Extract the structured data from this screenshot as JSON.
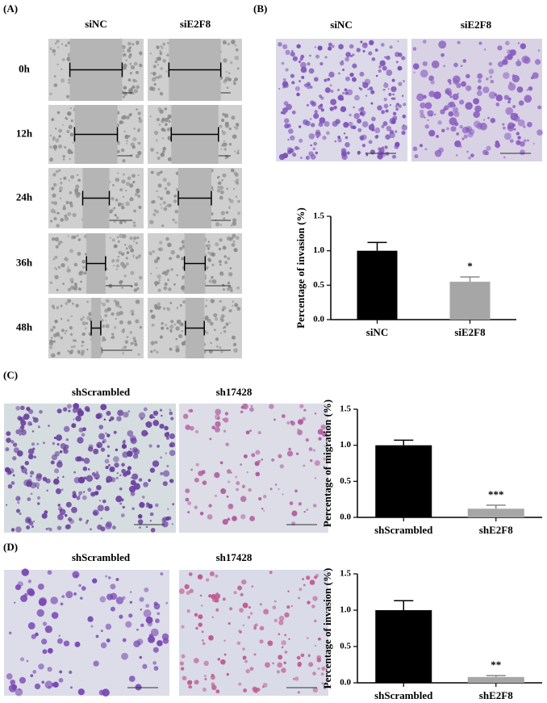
{
  "panels": [
    {
      "label": "(A)",
      "columns": [
        "siNC",
        "siE2F8"
      ],
      "rows": [
        "0h",
        "12h",
        "24h",
        "36h",
        "48h"
      ]
    },
    {
      "label": "(B)",
      "columns": [
        "siNC",
        "siE2F8"
      ]
    },
    {
      "label": "(C)",
      "columns": [
        "shScrambled",
        "sh17428"
      ]
    },
    {
      "label": "(D)",
      "columns": [
        "shScrambled",
        "sh17428"
      ]
    }
  ],
  "chart_data": [
    {
      "type": "bar",
      "ylabel": "Percentage of invasion (%)",
      "categories": [
        "siNC",
        "siE2F8"
      ],
      "values": [
        1.0,
        0.55
      ],
      "errors": [
        0.12,
        0.07
      ],
      "colors": [
        "#000000",
        "#a6a6a6"
      ],
      "annotations": [
        {
          "index": 1,
          "text": "*"
        }
      ],
      "ylim": [
        0,
        1.5
      ],
      "yticks": [
        {
          "value": 0,
          "label": "0.0"
        },
        {
          "value": 0.5,
          "label": "0.5"
        },
        {
          "value": 1,
          "label": "1.0"
        },
        {
          "value": 1.5,
          "label": "1.5"
        }
      ]
    },
    {
      "type": "bar",
      "ylabel": "Percentage of migration (%)",
      "categories": [
        "shScrambled",
        "shE2F8"
      ],
      "values": [
        1.0,
        0.12
      ],
      "errors": [
        0.07,
        0.05
      ],
      "colors": [
        "#000000",
        "#a6a6a6"
      ],
      "annotations": [
        {
          "index": 1,
          "text": "***"
        }
      ],
      "ylim": [
        0,
        1.5
      ],
      "yticks": [
        {
          "value": 0,
          "label": "0.0"
        },
        {
          "value": 0.5,
          "label": "0.5"
        },
        {
          "value": 1,
          "label": "1.0"
        },
        {
          "value": 1.5,
          "label": "1.5"
        }
      ]
    },
    {
      "type": "bar",
      "ylabel": "Percentage of invasion (%)",
      "categories": [
        "shScrambled",
        "shE2F8"
      ],
      "values": [
        1.0,
        0.08
      ],
      "errors": [
        0.13,
        0.02
      ],
      "colors": [
        "#000000",
        "#a6a6a6"
      ],
      "annotations": [
        {
          "index": 1,
          "text": "**"
        }
      ],
      "ylim": [
        0,
        1.5
      ],
      "yticks": [
        {
          "value": 0,
          "label": "0.0"
        },
        {
          "value": 0.5,
          "label": "0.5"
        },
        {
          "value": 1,
          "label": "1.0"
        },
        {
          "value": 1.5,
          "label": "1.5"
        }
      ]
    }
  ]
}
